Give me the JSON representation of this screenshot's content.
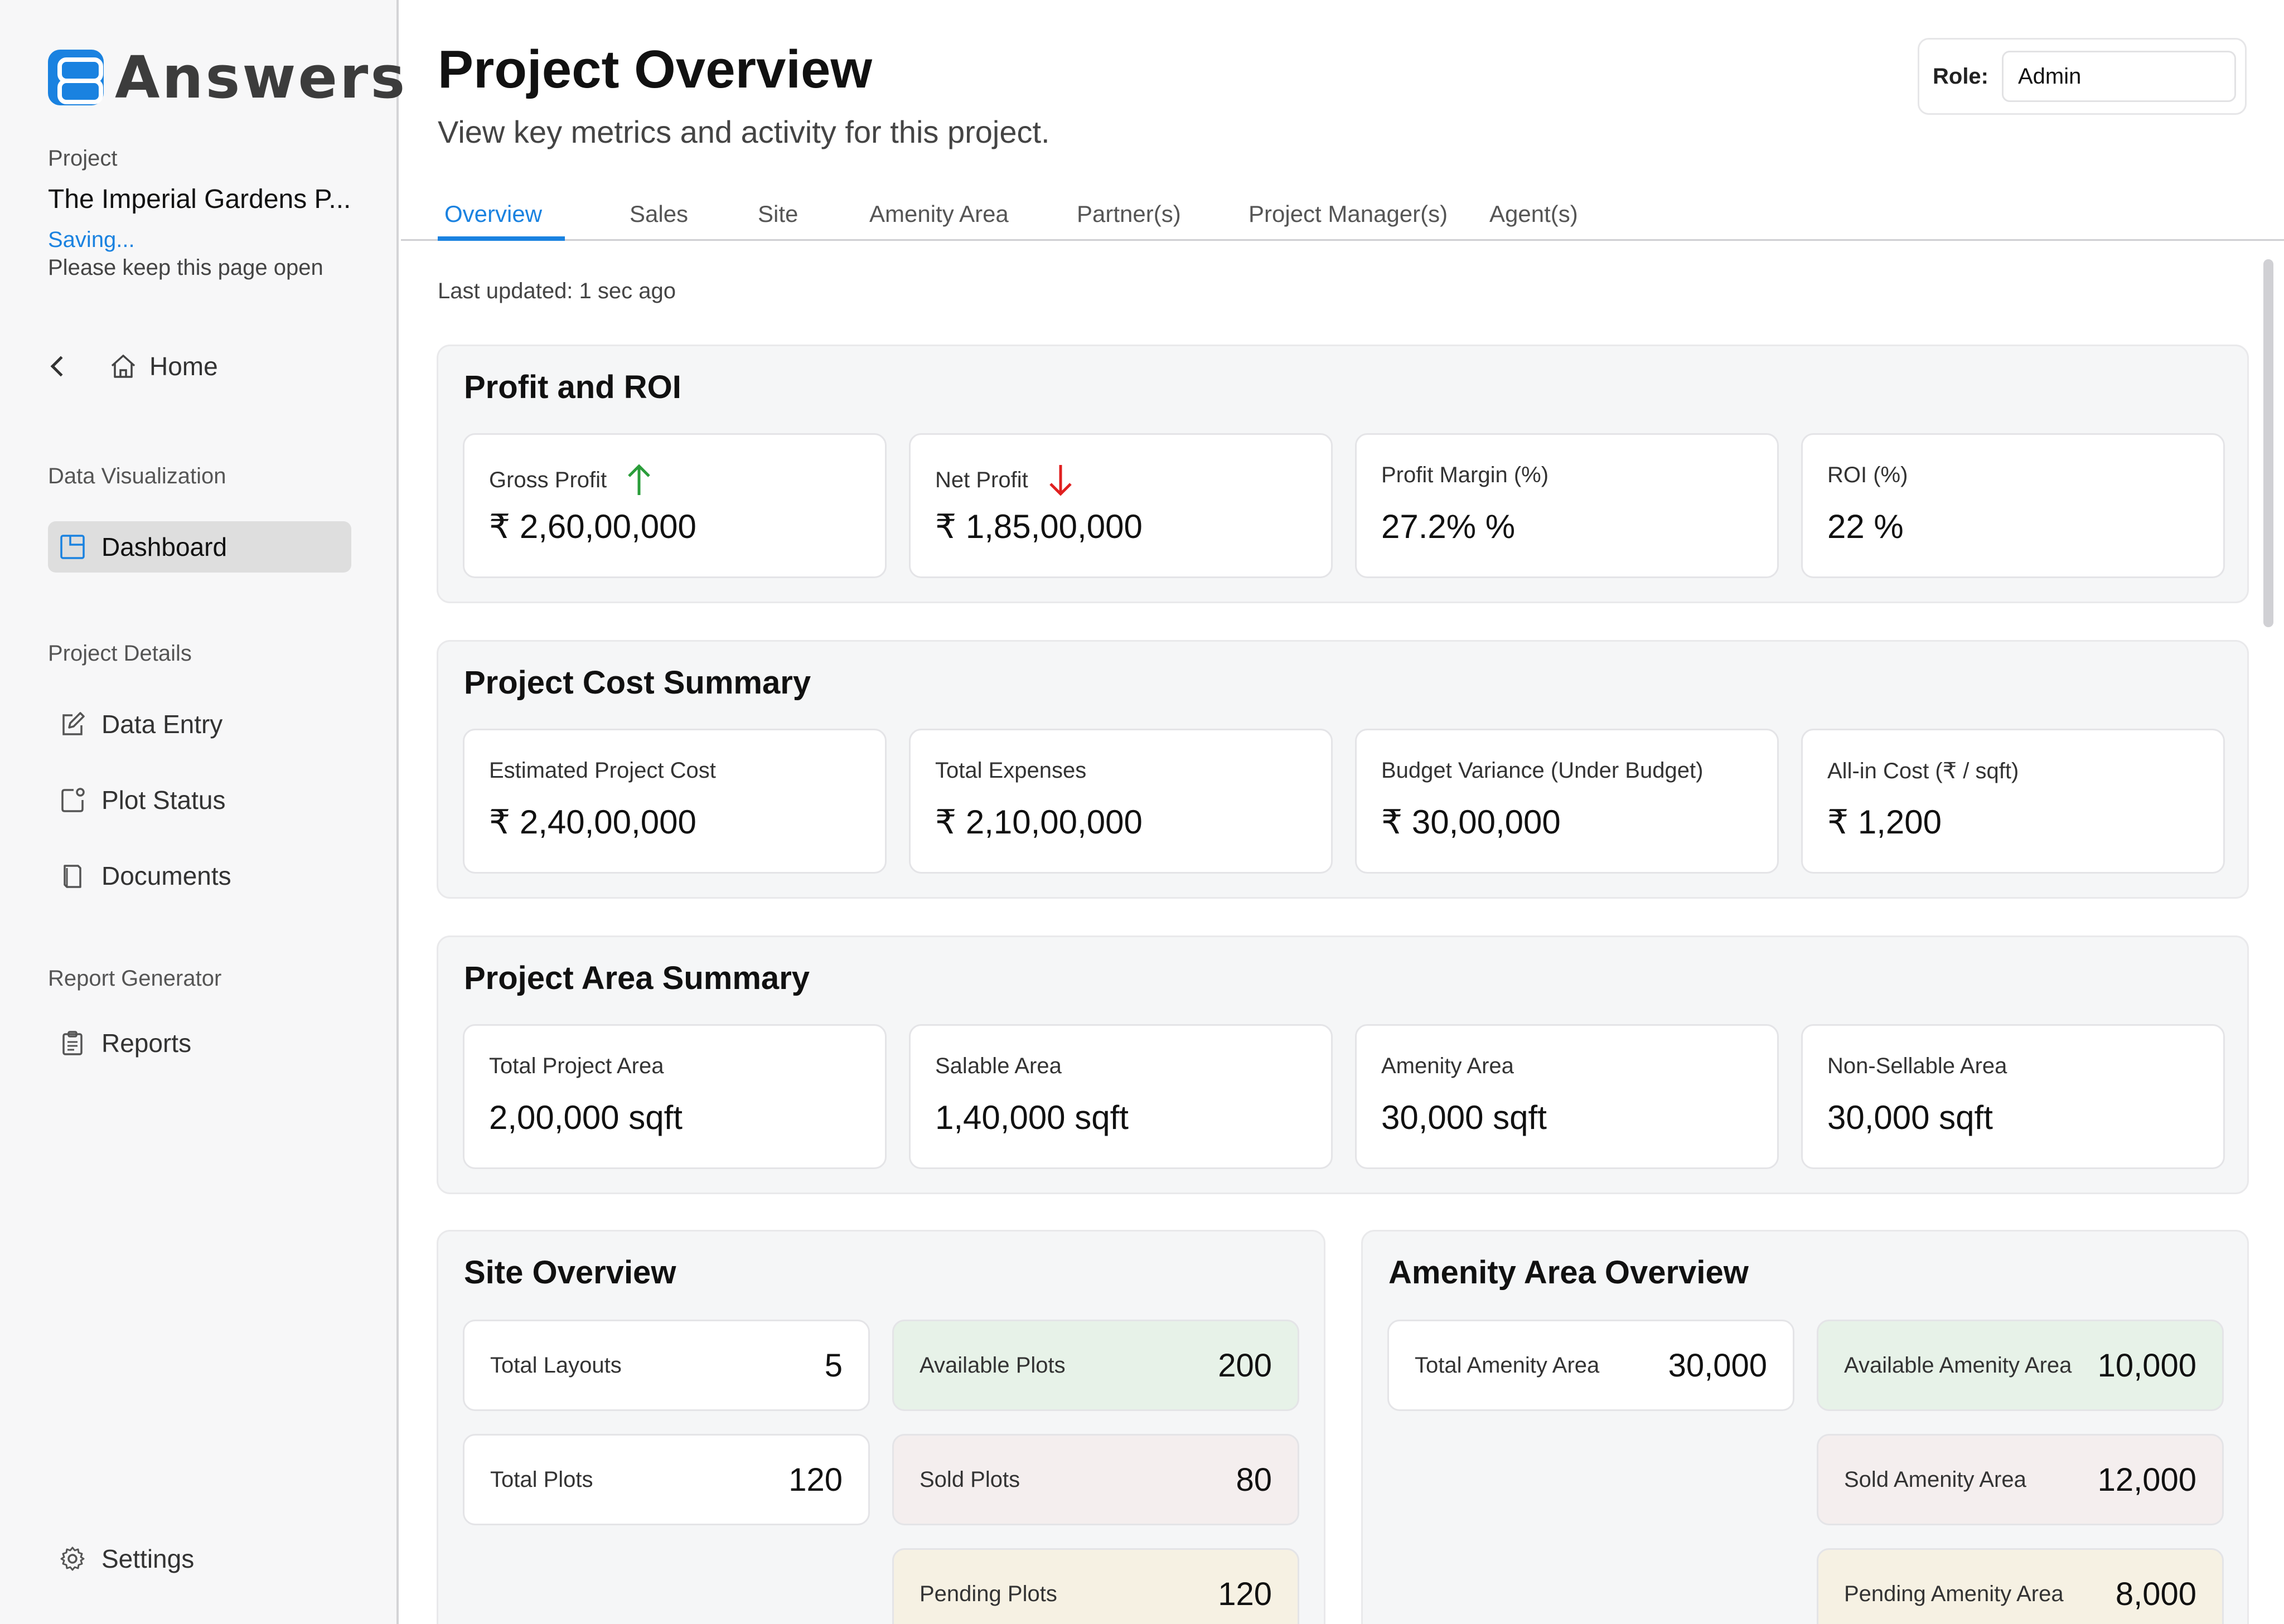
{
  "app": {
    "logo_text": "Answers"
  },
  "sidebar": {
    "project_label": "Project",
    "project_name": "The Imperial Gardens P...",
    "saving_text": "Saving...",
    "keep_open_text": "Please keep this page open",
    "home_label": "Home",
    "sections": {
      "data_visualization": "Data Visualization",
      "project_details": "Project Details",
      "report_generator": "Report Generator"
    },
    "items": {
      "dashboard": "Dashboard",
      "data_entry": "Data Entry",
      "plot_status": "Plot Status",
      "documents": "Documents",
      "reports": "Reports",
      "settings": "Settings"
    },
    "icons": [
      "chevron-left-icon",
      "home-icon",
      "dashboard-icon",
      "edit-icon",
      "plot-status-icon",
      "documents-icon",
      "clipboard-icon",
      "gear-icon"
    ]
  },
  "header": {
    "title": "Project Overview",
    "subtitle": "View key metrics and activity for this project.",
    "role_label": "Role:",
    "role_value": "Admin"
  },
  "tabs": [
    "Overview",
    "Sales",
    "Site",
    "Amenity Area",
    "Partner(s)",
    "Project Manager(s)",
    "Agent(s)"
  ],
  "active_tab": "Overview",
  "last_updated": "Last updated: 1 sec ago",
  "profit_roi": {
    "title": "Profit and ROI",
    "cards": [
      {
        "label": "Gross Profit",
        "value": "₹  2,60,00,000",
        "trend": "up"
      },
      {
        "label": "Net Profit",
        "value": "₹  1,85,00,000",
        "trend": "down"
      },
      {
        "label": "Profit Margin (%)",
        "value": "27.2% %"
      },
      {
        "label": "ROI (%)",
        "value": "22 %"
      }
    ]
  },
  "cost_summary": {
    "title": "Project Cost Summary",
    "cards": [
      {
        "label": "Estimated Project Cost",
        "value": "₹  2,40,00,000"
      },
      {
        "label": "Total Expenses",
        "value": "₹  2,10,00,000"
      },
      {
        "label": "Budget Variance (Under Budget)",
        "value": "₹  30,00,000"
      },
      {
        "label": "All-in Cost (₹ / sqft)",
        "value": "₹  1,200"
      }
    ]
  },
  "area_summary": {
    "title": "Project Area Summary",
    "cards": [
      {
        "label": "Total Project Area",
        "value": "2,00,000  sqft"
      },
      {
        "label": "Salable Area",
        "value": "1,40,000  sqft"
      },
      {
        "label": "Amenity Area",
        "value": "30,000  sqft"
      },
      {
        "label": "Non-Sellable Area",
        "value": "30,000  sqft"
      }
    ]
  },
  "site_overview": {
    "title": "Site Overview",
    "total_layouts": {
      "label": "Total Layouts",
      "value": "5"
    },
    "total_plots": {
      "label": "Total Plots",
      "value": "120"
    },
    "available_plots": {
      "label": "Available Plots",
      "value": "200"
    },
    "sold_plots": {
      "label": "Sold Plots",
      "value": "80"
    },
    "pending_plots": {
      "label": "Pending Plots",
      "value": "120"
    }
  },
  "amenity_overview": {
    "title": "Amenity Area Overview",
    "total": {
      "label": "Total Amenity Area",
      "value": "30,000"
    },
    "available": {
      "label": "Available Amenity Area",
      "value": "10,000"
    },
    "sold": {
      "label": "Sold Amenity Area",
      "value": "12,000"
    },
    "pending": {
      "label": "Pending Amenity Area",
      "value": "8,000"
    }
  },
  "colors": {
    "accent": "#1a82e0",
    "trend_up": "#2a9d3a",
    "trend_down": "#e02020",
    "available_bg": "#e7f2e8",
    "sold_bg": "#f4eeee",
    "pending_bg": "#f6f1e3"
  }
}
